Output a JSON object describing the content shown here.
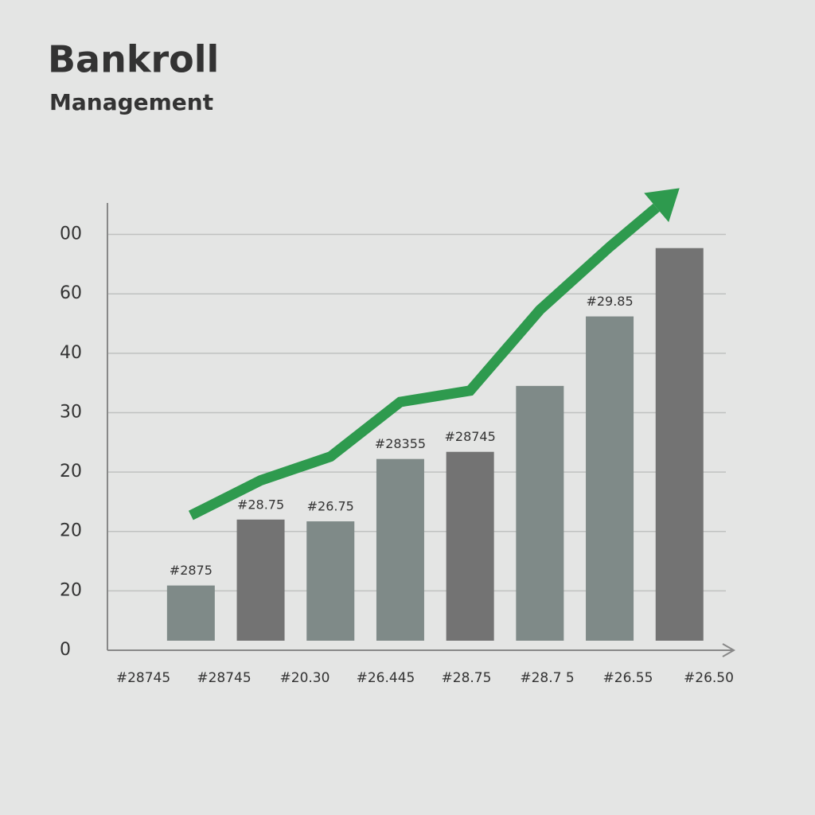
{
  "chart_data": {
    "type": "bar",
    "title": "Bankroll",
    "subtitle": "Management",
    "categories": [
      "#28745",
      "#28745",
      "#20.30",
      "#26.445",
      "#28.75",
      "#28.7 5",
      "#26.55",
      "#26.50"
    ],
    "series": [
      {
        "type": "bar",
        "colors": [
          "#7f8a88",
          "#737373",
          "#7f8a88",
          "#7f8a88",
          "#737373",
          "#7f8a88",
          "#7f8a88",
          "#737373"
        ],
        "values": [
          1.09,
          2.2,
          2.17,
          3.22,
          3.34,
          4.45,
          5.62,
          6.77
        ],
        "value_labels": [
          "#2875",
          "#28.75",
          "#26.75",
          "#28355",
          "#28745",
          null,
          "#29.85",
          null
        ]
      },
      {
        "type": "line",
        "color": "#2e9a4e",
        "values": [
          2.27,
          2.86,
          3.26,
          4.18,
          4.37,
          5.73,
          6.79,
          7.78
        ]
      }
    ],
    "ylim": [
      0,
      7.53
    ],
    "yticks": [
      {
        "value": 0,
        "label": "0"
      },
      {
        "value": 1,
        "label": "20"
      },
      {
        "value": 2,
        "label": "20"
      },
      {
        "value": 3,
        "label": "20"
      },
      {
        "value": 4,
        "label": "30"
      },
      {
        "value": 5,
        "label": "40"
      },
      {
        "value": 6,
        "label": "60"
      },
      {
        "value": 7,
        "label": "00"
      }
    ],
    "grid": true
  }
}
